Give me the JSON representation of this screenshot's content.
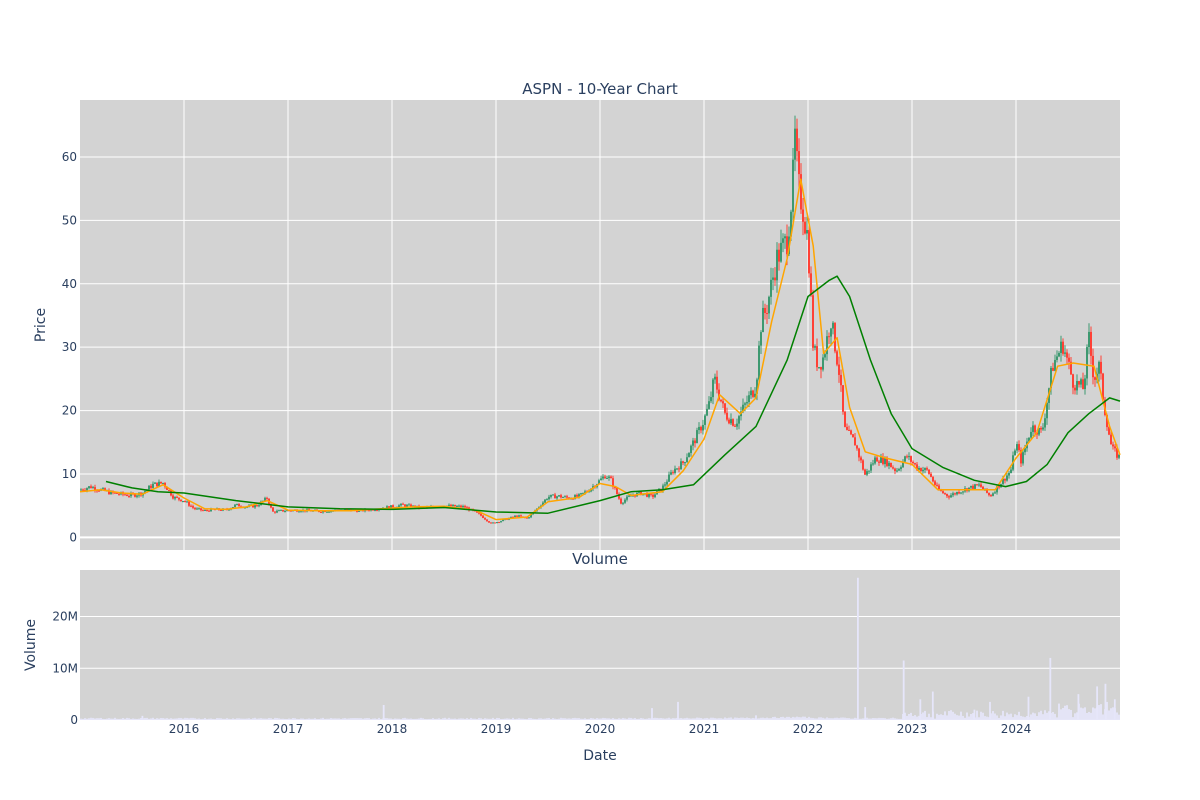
{
  "chart_data": [
    {
      "type": "candlestick",
      "title": "ASPN - 10-Year Chart",
      "ylabel": "Price",
      "ylim": [
        -2,
        69
      ],
      "yticks": [
        0,
        10,
        20,
        30,
        40,
        50,
        60
      ],
      "xlim": [
        2015.0,
        2025.0
      ],
      "xticks": [
        2016,
        2017,
        2018,
        2019,
        2020,
        2021,
        2022,
        2023,
        2024
      ],
      "grid": true,
      "colors": {
        "increasing": "#3d9970",
        "decreasing": "#ff4136",
        "ma_short": "#ffa500",
        "ma_long": "#008000",
        "background": "#d3d3d3",
        "grid": "#ffffff"
      },
      "close_series": [
        [
          2015.0,
          7.5
        ],
        [
          2015.1,
          8.0
        ],
        [
          2015.2,
          7.5
        ],
        [
          2015.3,
          7.0
        ],
        [
          2015.4,
          6.8
        ],
        [
          2015.5,
          6.6
        ],
        [
          2015.6,
          7.0
        ],
        [
          2015.7,
          8.3
        ],
        [
          2015.8,
          8.6
        ],
        [
          2015.9,
          6.3
        ],
        [
          2016.0,
          5.8
        ],
        [
          2016.1,
          4.5
        ],
        [
          2016.2,
          4.2
        ],
        [
          2016.3,
          4.4
        ],
        [
          2016.4,
          4.3
        ],
        [
          2016.5,
          5.1
        ],
        [
          2016.6,
          4.8
        ],
        [
          2016.7,
          5.0
        ],
        [
          2016.8,
          6.2
        ],
        [
          2016.85,
          4.0
        ],
        [
          2016.95,
          4.2
        ],
        [
          2017.1,
          4.3
        ],
        [
          2017.3,
          4.1
        ],
        [
          2017.5,
          4.3
        ],
        [
          2017.7,
          4.2
        ],
        [
          2017.9,
          4.6
        ],
        [
          2018.1,
          5.1
        ],
        [
          2018.3,
          4.6
        ],
        [
          2018.5,
          5.0
        ],
        [
          2018.7,
          4.8
        ],
        [
          2018.85,
          3.5
        ],
        [
          2018.95,
          2.2
        ],
        [
          2019.05,
          2.6
        ],
        [
          2019.2,
          3.4
        ],
        [
          2019.3,
          3.0
        ],
        [
          2019.4,
          4.6
        ],
        [
          2019.5,
          6.4
        ],
        [
          2019.6,
          6.5
        ],
        [
          2019.7,
          6.2
        ],
        [
          2019.8,
          6.5
        ],
        [
          2019.9,
          7.6
        ],
        [
          2020.0,
          9.0
        ],
        [
          2020.05,
          9.8
        ],
        [
          2020.1,
          9.2
        ],
        [
          2020.2,
          5.5
        ],
        [
          2020.3,
          6.6
        ],
        [
          2020.4,
          7.0
        ],
        [
          2020.5,
          6.4
        ],
        [
          2020.6,
          7.8
        ],
        [
          2020.7,
          10.5
        ],
        [
          2020.8,
          11.8
        ],
        [
          2020.9,
          15.0
        ],
        [
          2021.0,
          18.5
        ],
        [
          2021.05,
          21.0
        ],
        [
          2021.1,
          25.0
        ],
        [
          2021.2,
          19.5
        ],
        [
          2021.3,
          18.0
        ],
        [
          2021.4,
          21.0
        ],
        [
          2021.5,
          24.0
        ],
        [
          2021.55,
          34.0
        ],
        [
          2021.6,
          36.0
        ],
        [
          2021.7,
          44.0
        ],
        [
          2021.8,
          47.0
        ],
        [
          2021.85,
          55.0
        ],
        [
          2021.88,
          64.5
        ],
        [
          2021.9,
          56.0
        ],
        [
          2021.95,
          52.0
        ],
        [
          2022.0,
          47.0
        ],
        [
          2022.05,
          30.0
        ],
        [
          2022.1,
          27.0
        ],
        [
          2022.15,
          28.5
        ],
        [
          2022.22,
          34.5
        ],
        [
          2022.3,
          26.0
        ],
        [
          2022.35,
          17.0
        ],
        [
          2022.45,
          15.0
        ],
        [
          2022.55,
          9.8
        ],
        [
          2022.65,
          12.5
        ],
        [
          2022.75,
          12.0
        ],
        [
          2022.85,
          10.5
        ],
        [
          2022.95,
          12.8
        ],
        [
          2023.05,
          11.0
        ],
        [
          2023.15,
          10.5
        ],
        [
          2023.25,
          7.5
        ],
        [
          2023.35,
          6.5
        ],
        [
          2023.45,
          7.2
        ],
        [
          2023.55,
          7.8
        ],
        [
          2023.65,
          8.2
        ],
        [
          2023.75,
          6.5
        ],
        [
          2023.85,
          8.5
        ],
        [
          2023.95,
          10.5
        ],
        [
          2024.0,
          15.0
        ],
        [
          2024.05,
          12.0
        ],
        [
          2024.15,
          17.5
        ],
        [
          2024.25,
          16.5
        ],
        [
          2024.35,
          27.0
        ],
        [
          2024.45,
          30.5
        ],
        [
          2024.55,
          24.5
        ],
        [
          2024.65,
          23.5
        ],
        [
          2024.7,
          31.5
        ],
        [
          2024.75,
          25.0
        ],
        [
          2024.8,
          27.0
        ],
        [
          2024.85,
          20.5
        ],
        [
          2024.92,
          14.0
        ],
        [
          2025.0,
          12.5
        ]
      ],
      "ma_short_series": [
        [
          2015.0,
          7.2
        ],
        [
          2015.2,
          7.5
        ],
        [
          2015.4,
          7.0
        ],
        [
          2015.6,
          6.8
        ],
        [
          2015.8,
          8.3
        ],
        [
          2016.0,
          6.2
        ],
        [
          2016.2,
          4.5
        ],
        [
          2016.4,
          4.4
        ],
        [
          2016.6,
          4.8
        ],
        [
          2016.8,
          5.8
        ],
        [
          2017.0,
          4.3
        ],
        [
          2017.3,
          4.2
        ],
        [
          2017.6,
          4.2
        ],
        [
          2017.9,
          4.5
        ],
        [
          2018.2,
          4.8
        ],
        [
          2018.5,
          4.9
        ],
        [
          2018.8,
          4.3
        ],
        [
          2019.0,
          2.8
        ],
        [
          2019.3,
          3.2
        ],
        [
          2019.5,
          5.6
        ],
        [
          2019.8,
          6.3
        ],
        [
          2020.0,
          8.5
        ],
        [
          2020.15,
          8.0
        ],
        [
          2020.3,
          6.6
        ],
        [
          2020.6,
          7.2
        ],
        [
          2020.8,
          10.5
        ],
        [
          2021.0,
          15.5
        ],
        [
          2021.15,
          22.5
        ],
        [
          2021.35,
          19.5
        ],
        [
          2021.5,
          22.0
        ],
        [
          2021.65,
          34.0
        ],
        [
          2021.8,
          44.0
        ],
        [
          2021.93,
          56.5
        ],
        [
          2022.05,
          46.0
        ],
        [
          2022.15,
          29.0
        ],
        [
          2022.28,
          31.5
        ],
        [
          2022.4,
          20.5
        ],
        [
          2022.55,
          13.5
        ],
        [
          2022.75,
          12.5
        ],
        [
          2023.0,
          11.5
        ],
        [
          2023.25,
          7.5
        ],
        [
          2023.5,
          7.5
        ],
        [
          2023.8,
          7.5
        ],
        [
          2024.0,
          12.5
        ],
        [
          2024.2,
          16.5
        ],
        [
          2024.4,
          27.0
        ],
        [
          2024.55,
          27.5
        ],
        [
          2024.75,
          27.0
        ],
        [
          2024.9,
          17.5
        ],
        [
          2025.0,
          13.0
        ]
      ],
      "ma_long_series": [
        [
          2015.25,
          8.8
        ],
        [
          2015.5,
          7.8
        ],
        [
          2015.75,
          7.2
        ],
        [
          2016.0,
          7.0
        ],
        [
          2016.5,
          5.8
        ],
        [
          2017.0,
          4.8
        ],
        [
          2017.5,
          4.5
        ],
        [
          2018.0,
          4.4
        ],
        [
          2018.5,
          4.7
        ],
        [
          2019.0,
          4.0
        ],
        [
          2019.5,
          3.8
        ],
        [
          2020.0,
          5.8
        ],
        [
          2020.3,
          7.2
        ],
        [
          2020.6,
          7.5
        ],
        [
          2020.9,
          8.3
        ],
        [
          2021.2,
          13.0
        ],
        [
          2021.5,
          17.5
        ],
        [
          2021.8,
          28.0
        ],
        [
          2022.0,
          38.0
        ],
        [
          2022.2,
          40.5
        ],
        [
          2022.28,
          41.2
        ],
        [
          2022.4,
          38.0
        ],
        [
          2022.6,
          28.0
        ],
        [
          2022.8,
          19.5
        ],
        [
          2023.0,
          14.0
        ],
        [
          2023.3,
          11.0
        ],
        [
          2023.6,
          9.0
        ],
        [
          2023.9,
          8.0
        ],
        [
          2024.1,
          8.8
        ],
        [
          2024.3,
          11.5
        ],
        [
          2024.5,
          16.5
        ],
        [
          2024.7,
          19.5
        ],
        [
          2024.9,
          22.0
        ],
        [
          2025.0,
          21.5
        ]
      ]
    },
    {
      "type": "bar",
      "title": "Volume",
      "ylabel": "Volume",
      "xlabel": "Date",
      "ylim": [
        0,
        29
      ],
      "yticks": [
        0,
        10,
        20
      ],
      "ytick_labels": [
        "0",
        "10M",
        "20M"
      ],
      "xlim": [
        2015.0,
        2025.0
      ],
      "xticks": [
        2016,
        2017,
        2018,
        2019,
        2020,
        2021,
        2022,
        2023,
        2024
      ],
      "bar_color": "#e6e6fa",
      "grid": true,
      "volume_spikes_millions": [
        [
          2015.6,
          0.8
        ],
        [
          2017.92,
          2.9
        ],
        [
          2020.5,
          2.3
        ],
        [
          2020.75,
          3.5
        ],
        [
          2021.5,
          0.9
        ],
        [
          2022.48,
          27.5
        ],
        [
          2022.55,
          2.5
        ],
        [
          2022.92,
          11.5
        ],
        [
          2023.08,
          4.0
        ],
        [
          2023.2,
          5.5
        ],
        [
          2023.6,
          2.0
        ],
        [
          2023.75,
          3.5
        ],
        [
          2024.12,
          4.5
        ],
        [
          2024.33,
          12.0
        ],
        [
          2024.6,
          5.0
        ],
        [
          2024.78,
          6.5
        ],
        [
          2024.86,
          7.0
        ],
        [
          2024.95,
          4.0
        ]
      ]
    }
  ]
}
